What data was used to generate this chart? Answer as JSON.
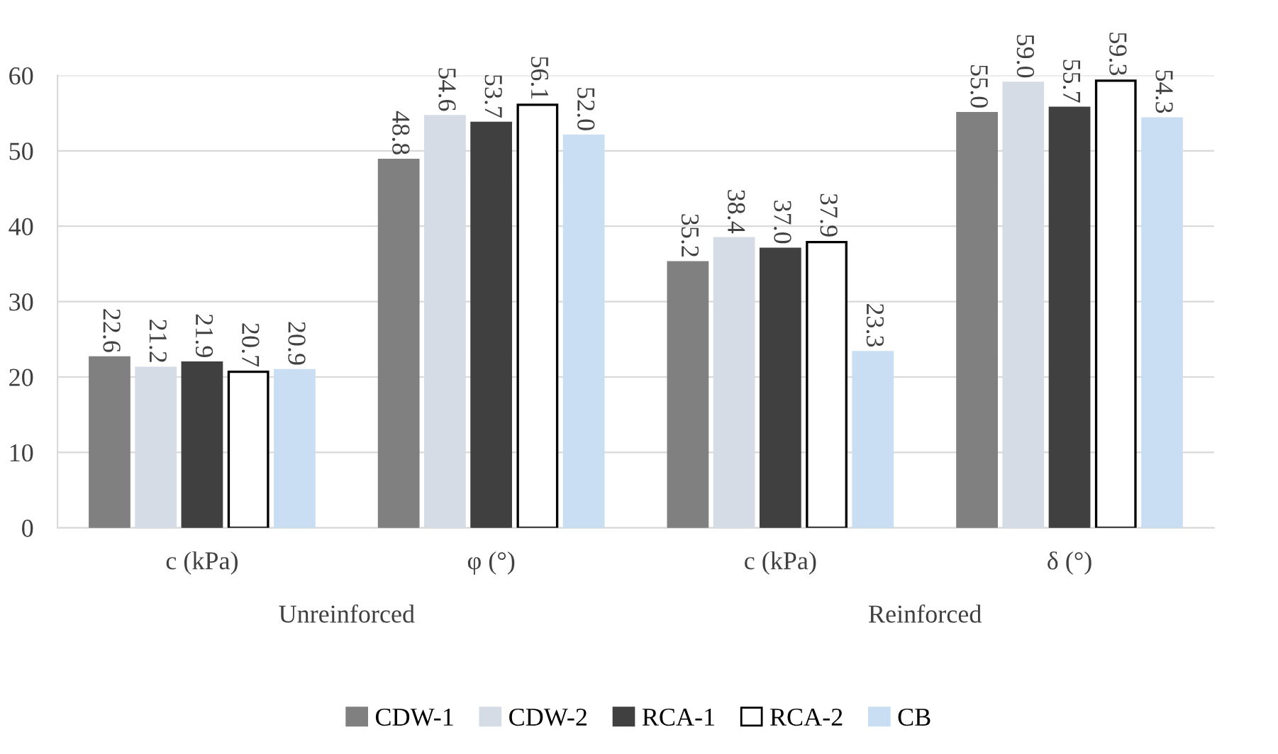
{
  "chart_data": {
    "type": "bar",
    "categories": [
      "c (kPa)",
      "φ (°)",
      "c (kPa)",
      "δ (°)"
    ],
    "series": [
      {
        "name": "CDW-1",
        "color": "#808080",
        "values": [
          22.6,
          48.8,
          35.2,
          55.0
        ],
        "value_labels": [
          "22.6",
          "48.8",
          "35.2",
          "55.0"
        ]
      },
      {
        "name": "CDW-2",
        "color": "#d6dce5",
        "values": [
          21.2,
          54.6,
          38.4,
          59.0
        ],
        "value_labels": [
          "21.2",
          "54.6",
          "38.4",
          "59.0"
        ]
      },
      {
        "name": "RCA-1",
        "color": "#404040",
        "values": [
          21.9,
          53.7,
          37.0,
          55.7
        ],
        "value_labels": [
          "21.9",
          "53.7",
          "37.0",
          "55.7"
        ]
      },
      {
        "name": "RCA-2",
        "color": "#ffffff",
        "values": [
          20.7,
          56.1,
          37.9,
          59.3
        ],
        "value_labels": [
          "20.7",
          "56.1",
          "37.9",
          "59.3"
        ]
      },
      {
        "name": "CB",
        "color": "#c9def2",
        "values": [
          20.9,
          52.0,
          23.3,
          54.3
        ],
        "value_labels": [
          "20.9",
          "52.0",
          "23.3",
          "54.3"
        ]
      }
    ],
    "annotations": [
      "Unreinforced",
      "Reinforced"
    ],
    "ylim": [
      0,
      60
    ],
    "yticks": [
      0,
      10,
      20,
      30,
      40,
      50,
      60
    ],
    "grid": "y",
    "legend": "bottom"
  }
}
